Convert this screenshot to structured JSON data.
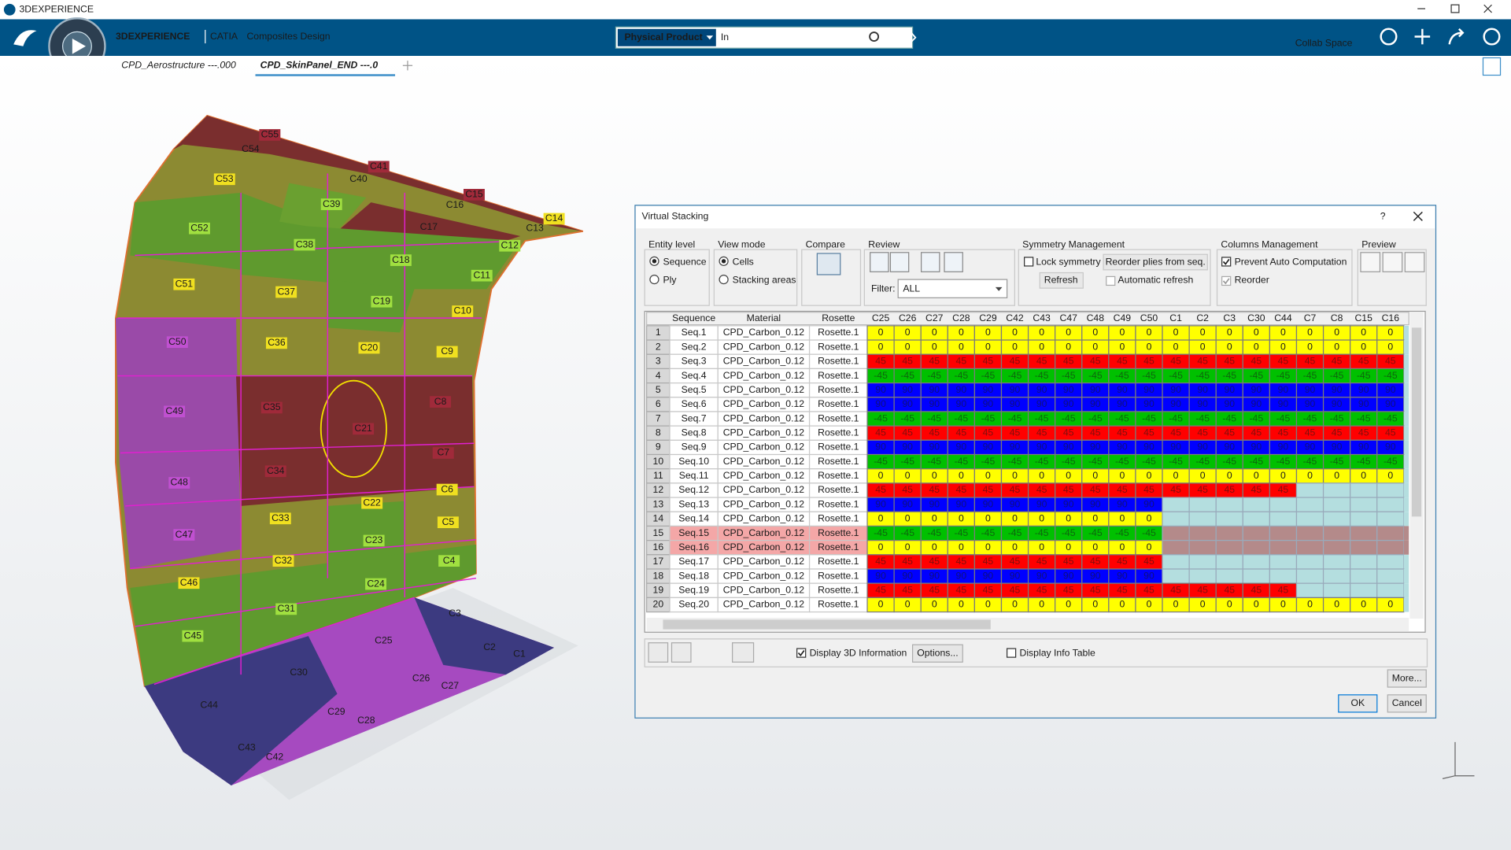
{
  "window_title": "3DEXPERIENCE",
  "header": {
    "brand": "3DEXPERIENCE",
    "app": "CATIA",
    "module": "Composites Design",
    "context": "Physical Product",
    "search_placeholder": "In",
    "collab_space": "Collab Space"
  },
  "tabs": [
    "CPD_Aerostructure ---.000",
    "CPD_SkinPanel_END ---.0"
  ],
  "viewport": {
    "zone_labels": [
      "C55",
      "C54",
      "C41",
      "C40",
      "C15",
      "C16",
      "C14",
      "C13",
      "C53",
      "C39",
      "C17",
      "C12",
      "C52",
      "C38",
      "C18",
      "C11",
      "C51",
      "C37",
      "C19",
      "C10",
      "C50",
      "C36",
      "C20",
      "C9",
      "C49",
      "C35",
      "C21",
      "C8",
      "C7",
      "C48",
      "C34",
      "C6",
      "C22",
      "C33",
      "C5",
      "C47",
      "C23",
      "C32",
      "C4",
      "C46",
      "C24",
      "C31",
      "C3",
      "C45",
      "C25",
      "C2",
      "C30",
      "C1",
      "C26",
      "C27",
      "C44",
      "C29",
      "C28",
      "C43",
      "C42"
    ]
  },
  "dialog": {
    "title": "Virtual Stacking",
    "help": "?",
    "entity_level": {
      "label": "Entity level",
      "options": [
        "Sequence",
        "Ply"
      ]
    },
    "view_mode": {
      "label": "View mode",
      "options": [
        "Cells",
        "Stacking areas"
      ]
    },
    "compare": "Compare",
    "review": "Review",
    "filter_label": "Filter:",
    "filter_value": "ALL",
    "symmetry": {
      "label": "Symmetry Management",
      "lock": "Lock symmetry",
      "reorder": "Reorder plies from seq.",
      "refresh": "Refresh",
      "auto_refresh": "Automatic refresh"
    },
    "columns_mgmt": {
      "label": "Columns Management",
      "prevent": "Prevent Auto Computation",
      "reorder": "Reorder"
    },
    "preview": "Preview",
    "table": {
      "headers": [
        "Sequence",
        "Material",
        "Rosette"
      ],
      "columns": [
        "C25",
        "C26",
        "C27",
        "C28",
        "C29",
        "C42",
        "C43",
        "C47",
        "C48",
        "C49",
        "C50",
        "C1",
        "C2",
        "C3",
        "C30",
        "C44",
        "C7",
        "C8",
        "C15",
        "C16"
      ],
      "rows": [
        {
          "index": 1,
          "sequence": "Seq.1",
          "material": "CPD_Carbon_0.12",
          "rosette": "Rosette.1",
          "color": "#ffff00",
          "cells": [
            0,
            0,
            0,
            0,
            0,
            0,
            0,
            0,
            0,
            0,
            0,
            0,
            0,
            0,
            0,
            0,
            0,
            0,
            0,
            0
          ]
        },
        {
          "index": 2,
          "sequence": "Seq.2",
          "material": "CPD_Carbon_0.12",
          "rosette": "Rosette.1",
          "color": "#ffff00",
          "cells": [
            0,
            0,
            0,
            0,
            0,
            0,
            0,
            0,
            0,
            0,
            0,
            0,
            0,
            0,
            0,
            0,
            0,
            0,
            0,
            0
          ]
        },
        {
          "index": 3,
          "sequence": "Seq.3",
          "material": "CPD_Carbon_0.12",
          "rosette": "Rosette.1",
          "color": "#ff0000",
          "cells": [
            45,
            45,
            45,
            45,
            45,
            45,
            45,
            45,
            45,
            45,
            45,
            45,
            45,
            45,
            45,
            45,
            45,
            45,
            45,
            45
          ]
        },
        {
          "index": 4,
          "sequence": "Seq.4",
          "material": "CPD_Carbon_0.12",
          "rosette": "Rosette.1",
          "color": "#00c000",
          "cells": [
            -45,
            -45,
            -45,
            -45,
            -45,
            -45,
            -45,
            -45,
            -45,
            -45,
            -45,
            -45,
            -45,
            -45,
            -45,
            -45,
            -45,
            -45,
            -45,
            -45
          ]
        },
        {
          "index": 5,
          "sequence": "Seq.5",
          "material": "CPD_Carbon_0.12",
          "rosette": "Rosette.1",
          "color": "#0000ff",
          "cells": [
            90,
            90,
            90,
            90,
            90,
            90,
            90,
            90,
            90,
            90,
            90,
            90,
            90,
            90,
            90,
            90,
            90,
            90,
            90,
            90
          ]
        },
        {
          "index": 6,
          "sequence": "Seq.6",
          "material": "CPD_Carbon_0.12",
          "rosette": "Rosette.1",
          "color": "#0000ff",
          "cells": [
            90,
            90,
            90,
            90,
            90,
            90,
            90,
            90,
            90,
            90,
            90,
            90,
            90,
            90,
            90,
            90,
            90,
            90,
            90,
            90
          ]
        },
        {
          "index": 7,
          "sequence": "Seq.7",
          "material": "CPD_Carbon_0.12",
          "rosette": "Rosette.1",
          "color": "#00c000",
          "cells": [
            -45,
            -45,
            -45,
            -45,
            -45,
            -45,
            -45,
            -45,
            -45,
            -45,
            -45,
            -45,
            -45,
            -45,
            -45,
            -45,
            -45,
            -45,
            -45,
            -45
          ]
        },
        {
          "index": 8,
          "sequence": "Seq.8",
          "material": "CPD_Carbon_0.12",
          "rosette": "Rosette.1",
          "color": "#ff0000",
          "cells": [
            45,
            45,
            45,
            45,
            45,
            45,
            45,
            45,
            45,
            45,
            45,
            45,
            45,
            45,
            45,
            45,
            45,
            45,
            45,
            45
          ]
        },
        {
          "index": 9,
          "sequence": "Seq.9",
          "material": "CPD_Carbon_0.12",
          "rosette": "Rosette.1",
          "color": "#0000ff",
          "cells": [
            90,
            90,
            90,
            90,
            90,
            90,
            90,
            90,
            90,
            90,
            90,
            90,
            90,
            90,
            90,
            90,
            90,
            90,
            90,
            90
          ]
        },
        {
          "index": 10,
          "sequence": "Seq.10",
          "material": "CPD_Carbon_0.12",
          "rosette": "Rosette.1",
          "color": "#00c000",
          "cells": [
            -45,
            -45,
            -45,
            -45,
            -45,
            -45,
            -45,
            -45,
            -45,
            -45,
            -45,
            -45,
            -45,
            -45,
            -45,
            -45,
            -45,
            -45,
            -45,
            -45
          ]
        },
        {
          "index": 11,
          "sequence": "Seq.11",
          "material": "CPD_Carbon_0.12",
          "rosette": "Rosette.1",
          "color": "#ffff00",
          "cells": [
            0,
            0,
            0,
            0,
            0,
            0,
            0,
            0,
            0,
            0,
            0,
            0,
            0,
            0,
            0,
            0,
            0,
            0,
            0,
            0
          ]
        },
        {
          "index": 12,
          "sequence": "Seq.12",
          "material": "CPD_Carbon_0.12",
          "rosette": "Rosette.1",
          "color": "#ff0000",
          "cells": [
            45,
            45,
            45,
            45,
            45,
            45,
            45,
            45,
            45,
            45,
            45,
            45,
            45,
            45,
            45,
            45
          ]
        },
        {
          "index": 13,
          "sequence": "Seq.13",
          "material": "CPD_Carbon_0.12",
          "rosette": "Rosette.1",
          "color": "#0000ff",
          "cells": [
            90,
            90,
            90,
            90,
            90,
            90,
            90,
            90,
            90,
            90,
            90
          ]
        },
        {
          "index": 14,
          "sequence": "Seq.14",
          "material": "CPD_Carbon_0.12",
          "rosette": "Rosette.1",
          "color": "#ffff00",
          "cells": [
            0,
            0,
            0,
            0,
            0,
            0,
            0,
            0,
            0,
            0,
            0
          ]
        },
        {
          "index": 15,
          "sequence": "Seq.15",
          "material": "CPD_Carbon_0.12",
          "rosette": "Rosette.1",
          "color": "#00c000",
          "selected": true,
          "cells": [
            -45,
            -45,
            -45,
            -45,
            -45,
            -45,
            -45,
            -45,
            -45,
            -45,
            -45
          ]
        },
        {
          "index": 16,
          "sequence": "Seq.16",
          "material": "CPD_Carbon_0.12",
          "rosette": "Rosette.1",
          "color": "#ffff00",
          "selected": true,
          "cells": [
            0,
            0,
            0,
            0,
            0,
            0,
            0,
            0,
            0,
            0,
            0
          ]
        },
        {
          "index": 17,
          "sequence": "Seq.17",
          "material": "CPD_Carbon_0.12",
          "rosette": "Rosette.1",
          "color": "#ff0000",
          "cells": [
            45,
            45,
            45,
            45,
            45,
            45,
            45,
            45,
            45,
            45,
            45
          ]
        },
        {
          "index": 18,
          "sequence": "Seq.18",
          "material": "CPD_Carbon_0.12",
          "rosette": "Rosette.1",
          "color": "#0000ff",
          "cells": [
            90,
            90,
            90,
            90,
            90,
            90,
            90,
            90,
            90,
            90,
            90
          ]
        },
        {
          "index": 19,
          "sequence": "Seq.19",
          "material": "CPD_Carbon_0.12",
          "rosette": "Rosette.1",
          "color": "#ff0000",
          "cells": [
            45,
            45,
            45,
            45,
            45,
            45,
            45,
            45,
            45,
            45,
            45,
            45,
            45,
            45,
            45,
            45
          ]
        },
        {
          "index": 20,
          "sequence": "Seq.20",
          "material": "CPD_Carbon_0.12",
          "rosette": "Rosette.1",
          "color": "#ffff00",
          "cells": [
            0,
            0,
            0,
            0,
            0,
            0,
            0,
            0,
            0,
            0,
            0,
            0,
            0,
            0,
            0,
            0,
            0,
            0,
            0,
            0
          ]
        }
      ]
    },
    "display_3d": "Display 3D Information",
    "options": "Options...",
    "display_info": "Display Info Table",
    "more": "More...",
    "ok": "OK",
    "cancel": "Cancel"
  }
}
